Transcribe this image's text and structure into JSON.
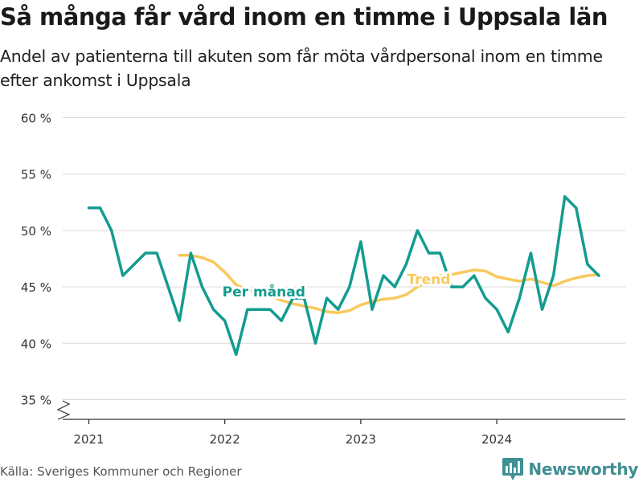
{
  "title": "Så många får vård inom en timme i Uppsala län",
  "subtitle": "Andel av patienterna till akuten som får möta vårdpersonal inom en timme efter ankomst i Uppsala",
  "source": "Källa: Sveriges Kommuner och Regioner",
  "brand": {
    "name": "Newsworthy",
    "logo_icon": "bar-chart-logo-icon",
    "color": "#3f8f93"
  },
  "colors": {
    "monthly": "#139c8f",
    "trend": "#f8c95c",
    "grid": "#d9d9d9",
    "axis": "#333333",
    "text": "#333333"
  },
  "chart_data": {
    "type": "line",
    "ylim": [
      35,
      60
    ],
    "y_ticks": [
      35,
      40,
      45,
      50,
      55,
      60
    ],
    "y_tick_labels": [
      "35 %",
      "40 %",
      "45 %",
      "50 %",
      "55 %",
      "60 %"
    ],
    "y_axis_break": true,
    "x_ticks": [
      "2021-01",
      "2022-01",
      "2023-01",
      "2024-01"
    ],
    "x_tick_labels": [
      "2021",
      "2022",
      "2023",
      "2024"
    ],
    "grid": "horizontal",
    "series": [
      {
        "name": "Per månad",
        "color": "#139c8f",
        "label_at": "2022-07",
        "x": [
          "2021-01",
          "2021-02",
          "2021-03",
          "2021-04",
          "2021-05",
          "2021-06",
          "2021-07",
          "2021-08",
          "2021-09",
          "2021-10",
          "2021-11",
          "2021-12",
          "2022-01",
          "2022-02",
          "2022-03",
          "2022-04",
          "2022-05",
          "2022-06",
          "2022-07",
          "2022-08",
          "2022-09",
          "2022-10",
          "2022-11",
          "2022-12",
          "2023-01",
          "2023-02",
          "2023-03",
          "2023-04",
          "2023-05",
          "2023-06",
          "2023-07",
          "2023-08",
          "2023-09",
          "2023-10",
          "2023-11",
          "2023-12",
          "2024-01",
          "2024-02",
          "2024-03",
          "2024-04",
          "2024-05",
          "2024-06",
          "2024-07",
          "2024-08",
          "2024-09",
          "2024-10"
        ],
        "values": [
          52,
          52,
          50,
          46,
          47,
          48,
          48,
          45,
          42,
          48,
          45,
          43,
          42,
          39,
          43,
          43,
          43,
          42,
          44,
          44,
          40,
          44,
          43,
          45,
          49,
          43,
          46,
          45,
          47,
          50,
          48,
          48,
          45,
          45,
          46,
          44,
          43,
          41,
          44,
          48,
          43,
          46,
          53,
          52,
          47,
          46
        ]
      },
      {
        "name": "Trend",
        "color": "#f8c95c",
        "label_at": "2023-07",
        "x": [
          "2021-09",
          "2021-10",
          "2021-11",
          "2021-12",
          "2022-01",
          "2022-02",
          "2022-03",
          "2022-04",
          "2022-05",
          "2022-06",
          "2022-07",
          "2022-08",
          "2022-09",
          "2022-10",
          "2022-11",
          "2022-12",
          "2023-01",
          "2023-02",
          "2023-03",
          "2023-04",
          "2023-05",
          "2023-06",
          "2023-07",
          "2023-08",
          "2023-09",
          "2023-10",
          "2023-11",
          "2023-12",
          "2024-01",
          "2024-02",
          "2024-03",
          "2024-04",
          "2024-05",
          "2024-06",
          "2024-07",
          "2024-08",
          "2024-09",
          "2024-10"
        ],
        "values": [
          47.8,
          47.8,
          47.6,
          47.2,
          46.3,
          45.2,
          44.7,
          44.5,
          44.2,
          43.8,
          43.5,
          43.3,
          43.1,
          42.8,
          42.7,
          42.9,
          43.4,
          43.7,
          43.9,
          44.0,
          44.3,
          45.0,
          45.6,
          46.0,
          46.1,
          46.3,
          46.5,
          46.4,
          45.9,
          45.7,
          45.5,
          45.7,
          45.4,
          45.1,
          45.5,
          45.8,
          46.0,
          46.1
        ]
      }
    ]
  }
}
